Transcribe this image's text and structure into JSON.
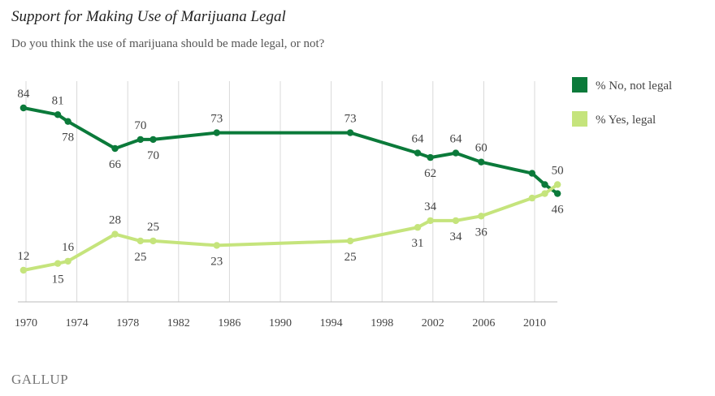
{
  "header": {
    "title": "Support for Making Use of Marijuana Legal",
    "subtitle": "Do you think the use of marijuana should be made legal, or not?"
  },
  "footer": {
    "brand": "GALLUP"
  },
  "colors": {
    "no": "#0b7a3a",
    "yes": "#c5e47c",
    "grid": "#d9d9d9",
    "text": "#444444"
  },
  "chart_data": {
    "type": "line",
    "title": "Support for Making Use of Marijuana Legal",
    "subtitle": "Do you think the use of marijuana should be made legal, or not?",
    "xlabel": "",
    "ylabel": "",
    "xlim": [
      1969.5,
      2013.5
    ],
    "ylim": [
      0,
      100
    ],
    "xticks": [
      1970,
      1974,
      1978,
      1982,
      1986,
      1990,
      1994,
      1998,
      2002,
      2006,
      2010
    ],
    "legend": "top-right",
    "series": [
      {
        "name": "% No, not legal",
        "key": "no",
        "points": [
          {
            "x": 1969.8,
            "y": 84,
            "label": "84",
            "pos": "above"
          },
          {
            "x": 1972.5,
            "y": 81,
            "label": "81",
            "pos": "above"
          },
          {
            "x": 1973.3,
            "y": 78,
            "label": "78",
            "pos": "below"
          },
          {
            "x": 1977.0,
            "y": 66,
            "label": "66",
            "pos": "below"
          },
          {
            "x": 1979.0,
            "y": 70,
            "label": "70",
            "pos": "above"
          },
          {
            "x": 1980.0,
            "y": 70,
            "label": "70",
            "pos": "below"
          },
          {
            "x": 1985.0,
            "y": 73,
            "label": "73",
            "pos": "above"
          },
          {
            "x": 1995.5,
            "y": 73,
            "label": "73",
            "pos": "above"
          },
          {
            "x": 2000.8,
            "y": 64,
            "label": "64",
            "pos": "above"
          },
          {
            "x": 2001.8,
            "y": 62,
            "label": "62",
            "pos": "below"
          },
          {
            "x": 2003.8,
            "y": 64,
            "label": "64",
            "pos": "above"
          },
          {
            "x": 2005.8,
            "y": 60,
            "label": "60",
            "pos": "above"
          },
          {
            "x": 2009.8,
            "y": 55,
            "label": "",
            "pos": "above"
          },
          {
            "x": 2010.8,
            "y": 50,
            "label": "",
            "pos": "above"
          },
          {
            "x": 2011.8,
            "y": 46,
            "label": "46",
            "pos": "below"
          }
        ]
      },
      {
        "name": "% Yes, legal",
        "key": "yes",
        "points": [
          {
            "x": 1969.8,
            "y": 12,
            "label": "12",
            "pos": "above"
          },
          {
            "x": 1972.5,
            "y": 15,
            "label": "15",
            "pos": "below"
          },
          {
            "x": 1973.3,
            "y": 16,
            "label": "16",
            "pos": "above"
          },
          {
            "x": 1977.0,
            "y": 28,
            "label": "28",
            "pos": "above"
          },
          {
            "x": 1979.0,
            "y": 25,
            "label": "25",
            "pos": "below"
          },
          {
            "x": 1980.0,
            "y": 25,
            "label": "25",
            "pos": "above"
          },
          {
            "x": 1985.0,
            "y": 23,
            "label": "23",
            "pos": "below"
          },
          {
            "x": 1995.5,
            "y": 25,
            "label": "25",
            "pos": "below"
          },
          {
            "x": 2000.8,
            "y": 31,
            "label": "31",
            "pos": "below"
          },
          {
            "x": 2001.8,
            "y": 34,
            "label": "34",
            "pos": "above"
          },
          {
            "x": 2003.8,
            "y": 34,
            "label": "34",
            "pos": "below"
          },
          {
            "x": 2005.8,
            "y": 36,
            "label": "36",
            "pos": "below"
          },
          {
            "x": 2009.8,
            "y": 44,
            "label": "",
            "pos": "above"
          },
          {
            "x": 2010.8,
            "y": 46,
            "label": "",
            "pos": "above"
          },
          {
            "x": 2011.8,
            "y": 50,
            "label": "50",
            "pos": "above"
          }
        ]
      }
    ]
  }
}
